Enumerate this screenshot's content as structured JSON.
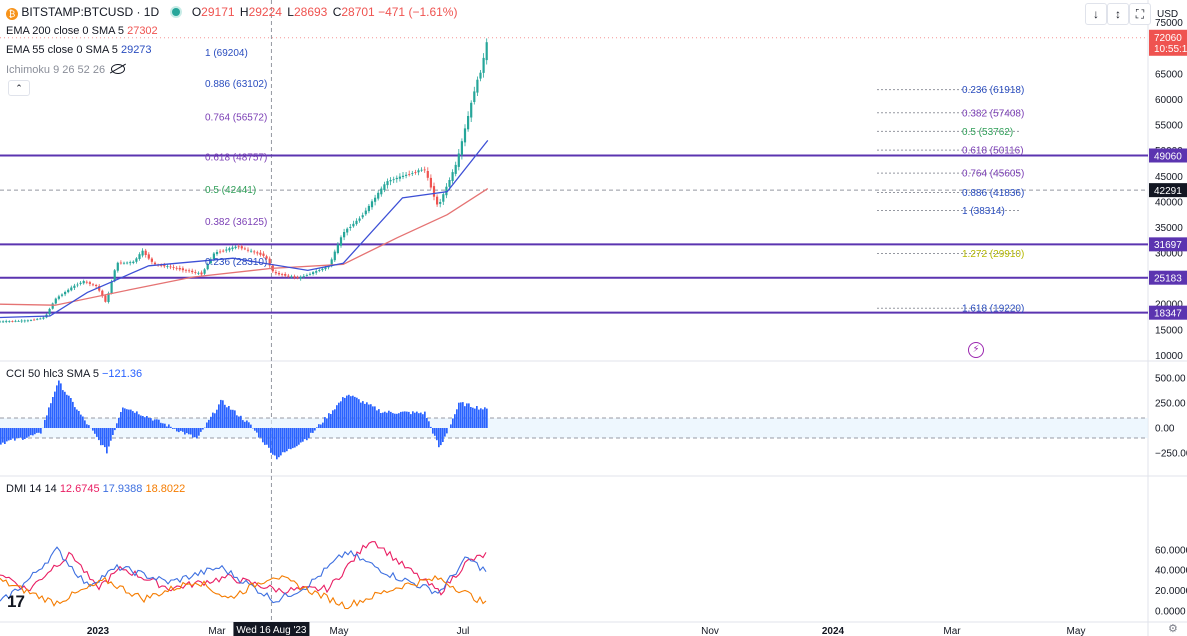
{
  "header": {
    "symbol": "BITSTAMP:BTCUSD · 1D",
    "o_label": "O",
    "o_value": "29171",
    "h_label": "H",
    "h_value": "29224",
    "l_label": "L",
    "l_value": "28693",
    "c_label": "C",
    "c_value": "28701",
    "change": "−471 (−1.61%)"
  },
  "indicators": {
    "ema200_label": "EMA 200 close 0 SMA 5",
    "ema200_value": "27302",
    "ema55_label": "EMA 55 close 0 SMA 5",
    "ema55_value": "29273",
    "ichimoku_label": "Ichimoku 9 26 52 26"
  },
  "toolbar": {
    "down_label": "↓",
    "scale_label": "↕",
    "fullscreen_label": "⛶",
    "collapse_label": "⌃"
  },
  "colors": {
    "up": "#26a69a",
    "down": "#ef5350",
    "ema200": "#e57373",
    "ema55": "#3d50d6",
    "hline": "#5b34b0",
    "cci": "#2962ff",
    "di_plus": "#e91e63",
    "di_minus": "#3d6fe0",
    "adx": "#f57c00"
  },
  "chart_data": [
    {
      "type": "candlestick",
      "title": "BITSTAMP:BTCUSD · 1D",
      "currency_label": "USD",
      "y_ticks": [
        "75000",
        "70000",
        "65000",
        "60000",
        "55000",
        "50000",
        "45000",
        "40000",
        "35000",
        "30000",
        "25000",
        "20000",
        "15000",
        "10000"
      ],
      "x_ticks": [
        "2023",
        "Mar",
        "May",
        "Jul",
        "Nov",
        "2024",
        "Mar",
        "May"
      ],
      "x_crosshair_label": "Wed 16 Aug '23",
      "price_labels": {
        "last_price": "72060",
        "countdown": "10:55:1",
        "level_1": "49060",
        "level_2": "42291",
        "level_3": "31697",
        "level_4": "25183",
        "level_5": "18347"
      },
      "horizontal_levels": [
        49060,
        31697,
        25183,
        18347
      ],
      "crosshair_price": 42291,
      "fib_left": [
        {
          "label": "1 (69204)",
          "value": 69204,
          "color": "#2a4dbf"
        },
        {
          "label": "0.886 (63102)",
          "value": 63102,
          "color": "#2a4dbf"
        },
        {
          "label": "0.764 (56572)",
          "value": 56572,
          "color": "#7b3fb5"
        },
        {
          "label": "0.618 (48757)",
          "value": 48757,
          "color": "#7b3fb5"
        },
        {
          "label": "0.5 (42441)",
          "value": 42441,
          "color": "#2e9e57"
        },
        {
          "label": "0.382 (36125)",
          "value": 36125,
          "color": "#7b3fb5"
        },
        {
          "label": "0.236 (28310)",
          "value": 28310,
          "color": "#2a4dbf"
        }
      ],
      "fib_right": [
        {
          "label": "0.236 (61918)",
          "value": 61918,
          "color": "#2a4dbf"
        },
        {
          "label": "0.382 (57408)",
          "value": 57408,
          "color": "#7b3fb5"
        },
        {
          "label": "0.5 (53762)",
          "value": 53762,
          "color": "#2e9e57"
        },
        {
          "label": "0.618 (50116)",
          "value": 50116,
          "color": "#7b3fb5"
        },
        {
          "label": "0.764 (45605)",
          "value": 45605,
          "color": "#7b3fb5"
        },
        {
          "label": "0.886 (41836)",
          "value": 41836,
          "color": "#2a4dbf"
        },
        {
          "label": "1 (38314)",
          "value": 38314,
          "color": "#2a4dbf"
        },
        {
          "label": "1.272 (29910)",
          "value": 29910,
          "color": "#b5b800"
        },
        {
          "label": "1.618 (19220)",
          "value": 19220,
          "color": "#2a4dbf"
        }
      ],
      "close_series": [
        {
          "date": "2022-11-28",
          "value": 16600
        },
        {
          "date": "2022-12-25",
          "value": 16800
        },
        {
          "date": "2023-01-10",
          "value": 17400
        },
        {
          "date": "2023-01-20",
          "value": 21000
        },
        {
          "date": "2023-02-05",
          "value": 23300
        },
        {
          "date": "2023-02-16",
          "value": 24500
        },
        {
          "date": "2023-03-01",
          "value": 23500
        },
        {
          "date": "2023-03-10",
          "value": 20300
        },
        {
          "date": "2023-03-20",
          "value": 28000
        },
        {
          "date": "2023-04-05",
          "value": 28200
        },
        {
          "date": "2023-04-14",
          "value": 30400
        },
        {
          "date": "2023-04-25",
          "value": 27800
        },
        {
          "date": "2023-05-10",
          "value": 27300
        },
        {
          "date": "2023-06-10",
          "value": 25900
        },
        {
          "date": "2023-06-22",
          "value": 30000
        },
        {
          "date": "2023-07-14",
          "value": 31300
        },
        {
          "date": "2023-08-10",
          "value": 29400
        },
        {
          "date": "2023-08-18",
          "value": 26100
        },
        {
          "date": "2023-09-11",
          "value": 25100
        },
        {
          "date": "2023-10-10",
          "value": 27400
        },
        {
          "date": "2023-10-24",
          "value": 34000
        },
        {
          "date": "2023-11-10",
          "value": 37000
        },
        {
          "date": "2023-12-05",
          "value": 44000
        },
        {
          "date": "2024-01-10",
          "value": 46500
        },
        {
          "date": "2024-01-23",
          "value": 39000
        },
        {
          "date": "2024-02-10",
          "value": 47500
        },
        {
          "date": "2024-02-28",
          "value": 62500
        },
        {
          "date": "2024-03-05",
          "value": 66000
        },
        {
          "date": "2024-03-11",
          "value": 72060
        }
      ],
      "ema200_series": [
        {
          "date": "2022-11-28",
          "value": 20000
        },
        {
          "date": "2023-01-20",
          "value": 19800
        },
        {
          "date": "2023-04-01",
          "value": 22800
        },
        {
          "date": "2023-06-01",
          "value": 25300
        },
        {
          "date": "2023-08-16",
          "value": 27000
        },
        {
          "date": "2023-10-24",
          "value": 27800
        },
        {
          "date": "2023-12-15",
          "value": 33000
        },
        {
          "date": "2024-02-01",
          "value": 37500
        },
        {
          "date": "2024-03-11",
          "value": 42600
        }
      ],
      "ema55_series": [
        {
          "date": "2022-11-28",
          "value": 17400
        },
        {
          "date": "2023-01-15",
          "value": 17700
        },
        {
          "date": "2023-02-20",
          "value": 22300
        },
        {
          "date": "2023-04-20",
          "value": 27500
        },
        {
          "date": "2023-07-10",
          "value": 29000
        },
        {
          "date": "2023-09-20",
          "value": 26600
        },
        {
          "date": "2023-10-24",
          "value": 28000
        },
        {
          "date": "2023-12-20",
          "value": 40800
        },
        {
          "date": "2024-02-01",
          "value": 42000
        },
        {
          "date": "2024-03-11",
          "value": 52000
        }
      ]
    },
    {
      "type": "bar",
      "title": "CCI 50 hlc3 SMA 5",
      "value_label": "−121.36",
      "y_ticks": [
        "500.00",
        "250.00",
        "0.00",
        "−250.00"
      ],
      "band_upper": 100,
      "band_lower": -100,
      "series": [
        {
          "date": "2022-11-28",
          "value": -150
        },
        {
          "date": "2023-01-05",
          "value": -60
        },
        {
          "date": "2023-01-22",
          "value": 470
        },
        {
          "date": "2023-02-15",
          "value": 100
        },
        {
          "date": "2023-03-10",
          "value": -240
        },
        {
          "date": "2023-03-25",
          "value": 220
        },
        {
          "date": "2023-04-30",
          "value": 60
        },
        {
          "date": "2023-06-05",
          "value": -110
        },
        {
          "date": "2023-06-28",
          "value": 270
        },
        {
          "date": "2023-07-25",
          "value": 40
        },
        {
          "date": "2023-08-20",
          "value": -300
        },
        {
          "date": "2023-09-20",
          "value": -90
        },
        {
          "date": "2023-10-27",
          "value": 340
        },
        {
          "date": "2023-11-30",
          "value": 160
        },
        {
          "date": "2024-01-10",
          "value": 150
        },
        {
          "date": "2024-01-24",
          "value": -210
        },
        {
          "date": "2024-02-12",
          "value": 250
        },
        {
          "date": "2024-03-11",
          "value": 180
        }
      ]
    },
    {
      "type": "line",
      "title": "DMI 14 14",
      "y_ticks": [
        "60.0000",
        "40.0000",
        "20.0000",
        "0.0000"
      ],
      "series": [
        {
          "name": "",
          "value_label": "12.6745",
          "points": [
            {
              "date": "2022-11-28",
              "value": 38
            },
            {
              "date": "2022-12-25",
              "value": 20
            },
            {
              "date": "2023-01-20",
              "value": 45
            },
            {
              "date": "2023-02-05",
              "value": 56
            },
            {
              "date": "2023-03-01",
              "value": 22
            },
            {
              "date": "2023-03-25",
              "value": 42
            },
            {
              "date": "2023-05-10",
              "value": 22
            },
            {
              "date": "2023-07-05",
              "value": 33
            },
            {
              "date": "2023-08-25",
              "value": 20
            },
            {
              "date": "2023-10-10",
              "value": 22
            },
            {
              "date": "2023-11-20",
              "value": 71
            },
            {
              "date": "2023-12-20",
              "value": 45
            },
            {
              "date": "2024-01-25",
              "value": 18
            },
            {
              "date": "2024-02-20",
              "value": 48
            },
            {
              "date": "2024-03-11",
              "value": 56
            }
          ]
        },
        {
          "name": "",
          "value_label": "17.9388",
          "points": [
            {
              "date": "2022-11-28",
              "value": 8
            },
            {
              "date": "2022-12-25",
              "value": 30
            },
            {
              "date": "2023-01-22",
              "value": 60
            },
            {
              "date": "2023-02-20",
              "value": 25
            },
            {
              "date": "2023-03-22",
              "value": 43
            },
            {
              "date": "2023-05-10",
              "value": 28
            },
            {
              "date": "2023-06-28",
              "value": 43
            },
            {
              "date": "2023-08-20",
              "value": 10
            },
            {
              "date": "2023-09-20",
              "value": 25
            },
            {
              "date": "2023-10-27",
              "value": 58
            },
            {
              "date": "2023-12-10",
              "value": 35
            },
            {
              "date": "2024-01-24",
              "value": 18
            },
            {
              "date": "2024-02-20",
              "value": 52
            },
            {
              "date": "2024-03-11",
              "value": 38
            }
          ]
        },
        {
          "name": "",
          "value_label": "18.8022",
          "points": [
            {
              "date": "2022-11-28",
              "value": 30
            },
            {
              "date": "2023-01-20",
              "value": 8
            },
            {
              "date": "2023-03-10",
              "value": 30
            },
            {
              "date": "2023-04-15",
              "value": 12
            },
            {
              "date": "2023-06-05",
              "value": 30
            },
            {
              "date": "2023-07-05",
              "value": 12
            },
            {
              "date": "2023-08-18",
              "value": 35
            },
            {
              "date": "2023-10-27",
              "value": 5
            },
            {
              "date": "2023-12-20",
              "value": 25
            },
            {
              "date": "2024-01-24",
              "value": 32
            },
            {
              "date": "2024-03-11",
              "value": 6
            }
          ]
        }
      ]
    }
  ]
}
